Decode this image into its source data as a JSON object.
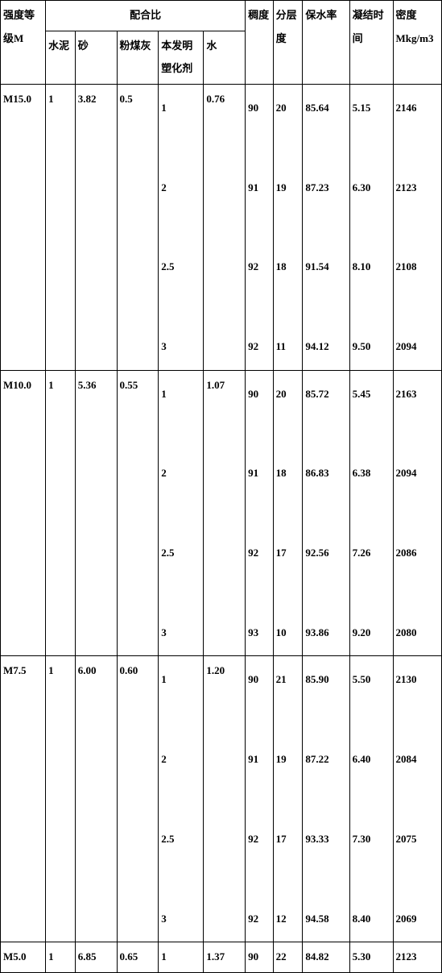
{
  "headers": {
    "strength": "强度等级M",
    "mix_ratio": "配合比",
    "cement": "水泥",
    "sand": "砂",
    "flyash": "粉煤灰",
    "agent": "本发明塑化剂",
    "water": "水",
    "consistency": "稠度",
    "layering": "分层度",
    "retention": "保水率",
    "setting": "凝结时间",
    "density": "密度Mkg/m3"
  },
  "rows": {
    "r1": {
      "strength": "M15.0",
      "cement": "1",
      "sand": "3.82",
      "flyash": "0.5",
      "agent": "1\n\n2\n\n2.5\n\n3",
      "water": "0.76",
      "consistency": "90\n\n91\n\n92\n\n92",
      "layering": "20\n\n19\n\n18\n\n11",
      "retention": "85.64\n\n87.23\n\n91.54\n\n94.12",
      "setting": "5.15\n\n6.30\n\n8.10\n\n9.50",
      "density": "2146\n\n2123\n\n2108\n\n2094"
    },
    "r2": {
      "strength": "M10.0",
      "cement": "1",
      "sand": "5.36",
      "flyash": "0.55",
      "agent": "1\n\n2\n\n2.5\n\n3",
      "water": "1.07",
      "consistency": "90\n\n91\n\n92\n\n93",
      "layering": "20\n\n18\n\n17\n\n10",
      "retention": "85.72\n\n86.83\n\n92.56\n\n93.86",
      "setting": "5.45\n\n6.38\n\n7.26\n\n9.20",
      "density": "2163\n\n2094\n\n2086\n\n2080"
    },
    "r3": {
      "strength": "M7.5",
      "cement": "1",
      "sand": "6.00",
      "flyash": "0.60",
      "agent": "1\n\n2\n\n2.5\n\n3",
      "water": "1.20",
      "consistency": "90\n\n91\n\n92\n\n92",
      "layering": "21\n\n19\n\n17\n\n12",
      "retention": "85.90\n\n87.22\n\n93.33\n\n94.58",
      "setting": "5.50\n\n6.40\n\n7.30\n\n8.40",
      "density": "2130\n\n2084\n\n2075\n\n2069"
    },
    "r4": {
      "strength": "M5.0",
      "cement": "1",
      "sand": "6.85",
      "flyash": "0.65",
      "agent": "1",
      "water": "1.37",
      "consistency": "90",
      "layering": "22",
      "retention": "84.82",
      "setting": "5.30",
      "density": "2123"
    }
  }
}
